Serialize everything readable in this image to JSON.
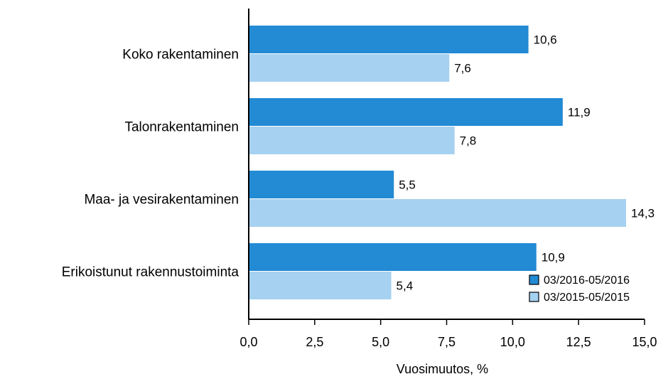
{
  "chart_data": {
    "type": "bar",
    "orientation": "horizontal",
    "title": "",
    "xlabel": "Vuosimuutos, %",
    "ylabel": "",
    "xlim": [
      0,
      15
    ],
    "x_ticks": [
      0,
      2.5,
      5,
      7.5,
      10,
      12.5,
      15
    ],
    "x_tick_labels": [
      "0,0",
      "2,5",
      "5,0",
      "7,5",
      "10,0",
      "12,5",
      "15,0"
    ],
    "grid": false,
    "legend_position": "bottom-right",
    "categories": [
      "Koko rakentaminen",
      "Talonrakentaminen",
      "Maa- ja vesirakentaminen",
      "Erikoistunut rakennustoiminta"
    ],
    "series": [
      {
        "name": "03/2016-05/2016",
        "color": "#238ad4",
        "values": [
          10.6,
          11.9,
          5.5,
          10.9
        ],
        "labels": [
          "10,6",
          "11,9",
          "5,5",
          "10,9"
        ]
      },
      {
        "name": "03/2015-05/2015",
        "color": "#a6d1f0",
        "values": [
          7.6,
          7.8,
          14.3,
          5.4
        ],
        "labels": [
          "7,6",
          "7,8",
          "14,3",
          "5,4"
        ]
      }
    ]
  }
}
